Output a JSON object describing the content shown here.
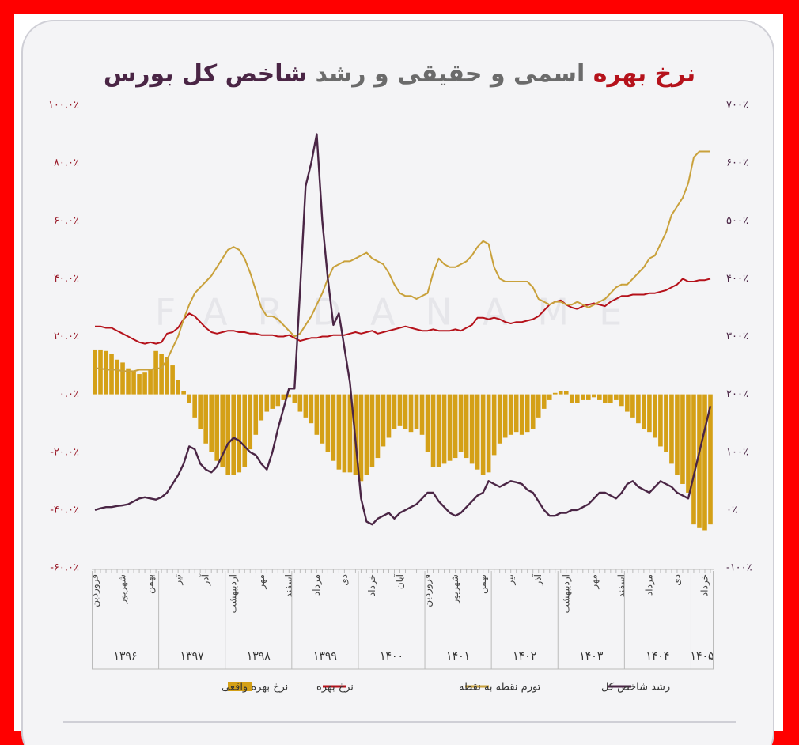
{
  "chart_data": {
    "type": "combo",
    "title": [
      "نرخ بهره",
      "اسمی و حقیقی و رشد",
      "شاخص کل بورس"
    ],
    "title_colors": [
      "#b5121b",
      "#6b6b6b",
      "#4a2545"
    ],
    "watermark": "FARDANAME",
    "categories": [
      "فروردین",
      null,
      null,
      null,
      null,
      "شهریور",
      null,
      null,
      null,
      null,
      "بهمن",
      null,
      null,
      null,
      null,
      "تیر",
      null,
      null,
      null,
      null,
      "آذر",
      null,
      null,
      null,
      null,
      "اردیبهشت",
      null,
      null,
      null,
      null,
      "مهر",
      null,
      null,
      null,
      null,
      "اسفند",
      null,
      null,
      null,
      null,
      "مرداد",
      null,
      null,
      null,
      null,
      "دی",
      null,
      null,
      null,
      null,
      "خرداد",
      null,
      null,
      null,
      null,
      "آبان",
      null,
      null,
      null,
      null,
      "فروردین",
      null,
      null,
      null,
      null,
      "شهریور",
      null,
      null,
      null,
      null,
      "بهمن",
      null,
      null,
      null,
      null,
      "تیر",
      null,
      null,
      null,
      null,
      "آذر",
      null,
      null,
      null,
      null,
      "اردیبهشت",
      null,
      null,
      null,
      null,
      "مهر",
      null,
      null,
      null,
      null,
      "اسفند",
      null,
      null,
      null,
      null,
      "مرداد",
      null,
      null,
      null,
      null,
      "دی",
      null,
      null,
      null,
      null,
      "خرداد",
      null
    ],
    "year_labels": [
      "۱۳۹۶",
      "۱۳۹۷",
      "۱۳۹۸",
      "۱۳۹۹",
      "۱۴۰۰",
      "۱۴۰۱",
      "۱۴۰۲",
      "۱۴۰۳",
      "۱۴۰۴",
      "۱۴۰۵"
    ],
    "ylim": [
      -60,
      100
    ],
    "yticks": [
      {
        "value": 100,
        "label": "۱۰۰.۰٪"
      },
      {
        "value": 80,
        "label": "۸۰.۰٪"
      },
      {
        "value": 60,
        "label": "۶۰.۰٪"
      },
      {
        "value": 40,
        "label": "۴۰.۰٪"
      },
      {
        "value": 20,
        "label": "۲۰.۰٪"
      },
      {
        "value": 0,
        "label": "۰.۰٪"
      },
      {
        "value": -20,
        "label": "-۲۰.۰٪"
      },
      {
        "value": -40,
        "label": "-۴۰.۰٪"
      },
      {
        "value": -60,
        "label": "-۶۰.۰٪"
      }
    ],
    "y2lim": [
      -100,
      700
    ],
    "y2ticks": [
      {
        "value": 700,
        "label": "۷۰۰٪"
      },
      {
        "value": 600,
        "label": "۶۰۰٪"
      },
      {
        "value": 500,
        "label": "۵۰۰٪"
      },
      {
        "value": 400,
        "label": "۴۰۰٪"
      },
      {
        "value": 300,
        "label": "۳۰۰٪"
      },
      {
        "value": 200,
        "label": "۲۰۰٪"
      },
      {
        "value": 100,
        "label": "۱۰۰٪"
      },
      {
        "value": 0,
        "label": "۰٪"
      },
      {
        "value": -100,
        "label": "-۱۰۰٪"
      }
    ],
    "grid": false,
    "series": [
      {
        "name": "نرخ بهره واقعی",
        "type": "bar",
        "color": "#d4a017",
        "values": [
          15.5,
          15.5,
          15,
          14,
          12,
          11,
          9,
          8,
          7,
          7.5,
          8.5,
          15,
          14,
          13,
          10,
          5,
          1,
          -3,
          -8,
          -12,
          -17,
          -20,
          -23,
          -25,
          -28,
          -28,
          -27,
          -25,
          -19,
          -14,
          -9,
          -6,
          -5,
          -4,
          -2,
          -1,
          -3,
          -6,
          -8,
          -10,
          -14,
          -17,
          -20,
          -23,
          -26,
          -27,
          -27,
          -28,
          -30,
          -28,
          -25,
          -22,
          -18,
          -15,
          -12,
          -11,
          -12,
          -13,
          -12,
          -14,
          -20,
          -25,
          -25,
          -24,
          -23,
          -22,
          -20,
          -22,
          -24,
          -26,
          -28,
          -27,
          -21,
          -17,
          -15,
          -14,
          -13,
          -14,
          -13,
          -12,
          -8,
          -5,
          -2,
          0.5,
          1,
          1,
          -3,
          -3,
          -2,
          -2,
          -1,
          -2,
          -3,
          -3,
          -2,
          -4,
          -6,
          -8,
          -10,
          -12,
          -13,
          -15,
          -18,
          -20,
          -24,
          -28,
          -31,
          -34,
          -45,
          -46,
          -47,
          -45
        ]
      },
      {
        "name": "نرخ بهره",
        "type": "line",
        "color": "#b5121b",
        "values": [
          23.5,
          23.5,
          23,
          23,
          22,
          21,
          20,
          19,
          18,
          17.5,
          18,
          17.5,
          18,
          21,
          21.5,
          23,
          26,
          28,
          27,
          25,
          23,
          21.5,
          21,
          21.5,
          22,
          22,
          21.5,
          21.5,
          21,
          21,
          20.5,
          20.5,
          20.5,
          20,
          20,
          20.5,
          19.5,
          18.5,
          19,
          19.5,
          19.5,
          20,
          20,
          20.5,
          20.5,
          20.5,
          21,
          21.5,
          21,
          21.5,
          22,
          21,
          21.5,
          22,
          22.5,
          23,
          23.5,
          23,
          22.5,
          22,
          22,
          22.5,
          22,
          22,
          22,
          22.5,
          22,
          23,
          24,
          26.5,
          26.5,
          26,
          26.5,
          26,
          25,
          24.5,
          25,
          25,
          25.5,
          26,
          27,
          29,
          31,
          32,
          32.5,
          31,
          30,
          29.5,
          30.5,
          31,
          31.5,
          31,
          30.5,
          32,
          33,
          34,
          34,
          34.5,
          34.5,
          34.5,
          35,
          35,
          35.5,
          36,
          37,
          38,
          40,
          39,
          39,
          39.5,
          39.5,
          40
        ]
      },
      {
        "name": "تورم نقطه به نقطه",
        "type": "line",
        "color": "#c9a13b",
        "values": [
          9,
          9,
          8.5,
          8.5,
          8.5,
          8,
          8,
          8,
          8.5,
          8.5,
          8.5,
          9,
          9,
          12,
          16,
          20,
          26,
          31,
          35,
          37,
          39,
          41,
          44,
          47,
          50,
          51,
          50,
          47,
          42,
          36,
          30,
          27,
          27,
          26,
          24,
          22,
          20,
          21,
          24,
          27,
          31,
          35,
          40,
          44,
          45,
          46,
          46,
          47,
          48,
          49,
          47,
          46,
          45,
          42,
          38,
          35,
          34,
          34,
          33,
          34,
          35,
          42,
          47,
          45,
          44,
          44,
          45,
          46,
          48,
          51,
          53,
          52,
          44,
          40,
          39,
          39,
          39,
          39,
          39,
          37,
          33,
          32,
          31,
          32,
          32,
          31,
          31,
          32,
          31,
          30,
          31,
          32,
          33,
          35,
          37,
          38,
          38,
          40,
          42,
          44,
          47,
          48,
          52,
          56,
          62,
          65,
          68,
          73,
          82,
          84,
          84,
          84
        ]
      },
      {
        "name": "رشد شاخص کل",
        "type": "line",
        "axis": "y2",
        "color": "#4a2545",
        "values": [
          0,
          3,
          5,
          5,
          7,
          8,
          10,
          15,
          20,
          22,
          20,
          18,
          22,
          30,
          45,
          60,
          80,
          110,
          105,
          80,
          70,
          65,
          75,
          95,
          115,
          125,
          120,
          110,
          100,
          95,
          80,
          70,
          100,
          140,
          175,
          210,
          210,
          380,
          560,
          600,
          650,
          500,
          400,
          320,
          340,
          280,
          220,
          120,
          20,
          -20,
          -25,
          -15,
          -10,
          -5,
          -15,
          -5,
          0,
          5,
          10,
          20,
          30,
          30,
          15,
          5,
          -5,
          -10,
          -5,
          5,
          15,
          25,
          30,
          50,
          45,
          40,
          45,
          50,
          48,
          45,
          35,
          30,
          15,
          0,
          -10,
          -10,
          -5,
          -5,
          0,
          0,
          5,
          10,
          20,
          30,
          30,
          25,
          20,
          30,
          45,
          50,
          40,
          35,
          30,
          40,
          50,
          45,
          40,
          30,
          25,
          20,
          60,
          100,
          140,
          180
        ]
      }
    ]
  }
}
